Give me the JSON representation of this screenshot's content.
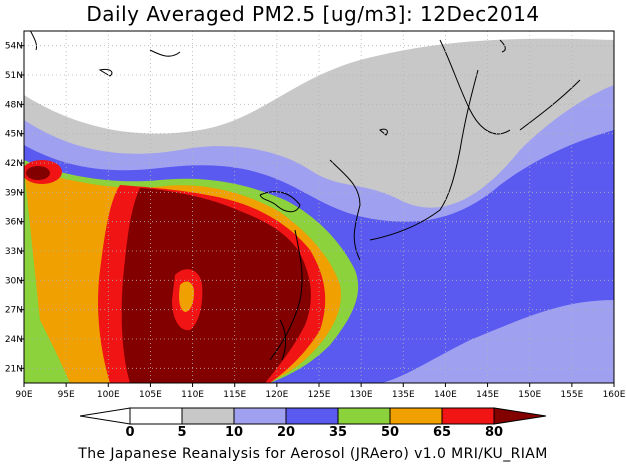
{
  "title": "Daily Averaged PM2.5 [ug/m3]: 12Dec2014",
  "credit": "The Japanese Reanalysis for Aerosol (JRAero) v1.0 MRI/KU_RIAM",
  "axes": {
    "lon_labels": [
      "90E",
      "95E",
      "100E",
      "105E",
      "110E",
      "115E",
      "120E",
      "125E",
      "130E",
      "135E",
      "140E",
      "145E",
      "150E",
      "155E",
      "160E"
    ],
    "lat_labels": [
      "54N",
      "51N",
      "48N",
      "45N",
      "42N",
      "39N",
      "36N",
      "33N",
      "30N",
      "27N",
      "24N",
      "21N"
    ],
    "lon_range": [
      90,
      160
    ],
    "lat_range": [
      19.5,
      55.5
    ]
  },
  "colorbar": {
    "labels": [
      "0",
      "5",
      "10",
      "20",
      "35",
      "50",
      "65",
      "80"
    ],
    "colors": [
      "#ffffff",
      "#c8c8c8",
      "#a0a0f0",
      "#5a5af0",
      "#8cd23c",
      "#f0a000",
      "#f01414",
      "#820000"
    ]
  }
}
